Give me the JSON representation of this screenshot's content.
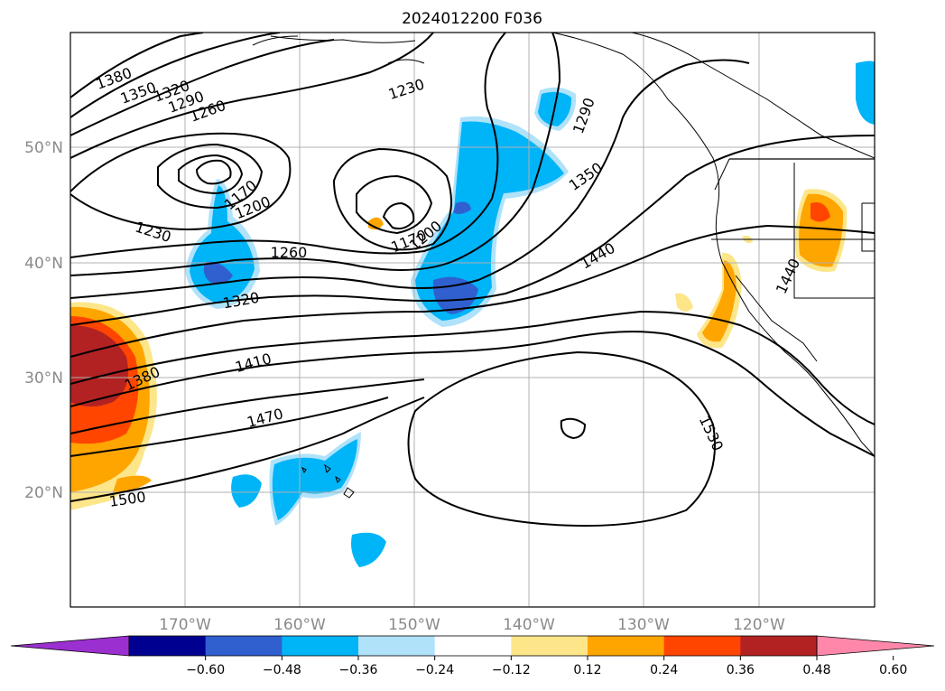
{
  "title": "2024012200 F036",
  "lat_ticks": [
    "50°N",
    "40°N",
    "30°N",
    "20°N"
  ],
  "lon_ticks": [
    "170°W",
    "160°W",
    "150°W",
    "140°W",
    "130°W",
    "120°W"
  ],
  "colorbar": {
    "ticks": [
      "−0.60",
      "−0.48",
      "−0.36",
      "−0.24",
      "−0.12",
      "0.12",
      "0.24",
      "0.36",
      "0.48",
      "0.60"
    ],
    "colors": [
      "#9b30d0",
      "#000090",
      "#3060d0",
      "#00b4f8",
      "#b0e2fa",
      "#ffffff",
      "#fde68a",
      "#ffa500",
      "#ff4500",
      "#b22222",
      "#ff88aa"
    ]
  },
  "contour_labels": [
    "1380",
    "1350",
    "1320",
    "1290",
    "1260",
    "1230",
    "1200",
    "1170",
    "1230",
    "1260",
    "1320",
    "1170",
    "1200",
    "1290",
    "1350",
    "1440",
    "1410",
    "1380",
    "1470",
    "1500",
    "1530",
    "1440"
  ]
}
